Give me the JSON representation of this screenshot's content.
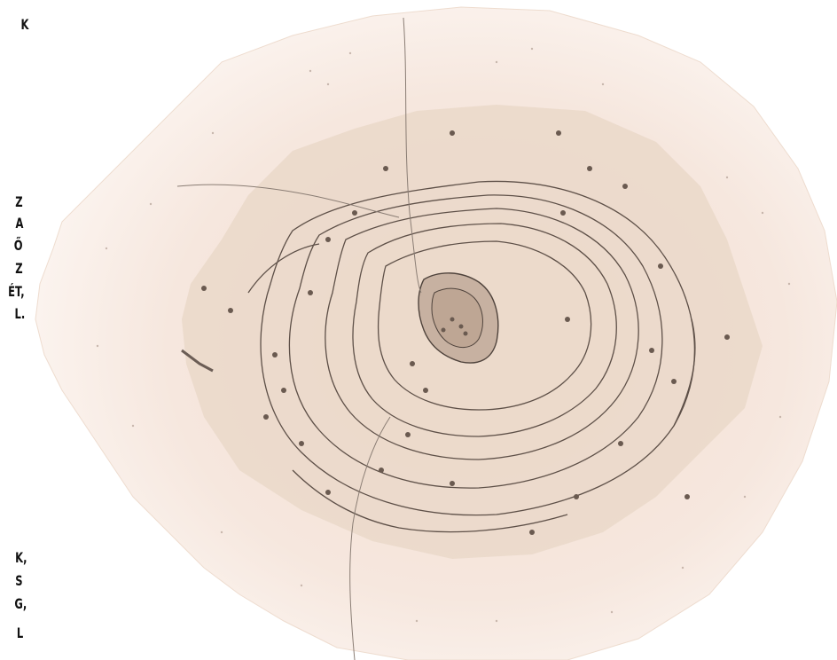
{
  "text_fragments": {
    "f1": "K",
    "f2": "Z",
    "f3": "A",
    "f4": "Ő",
    "f5": "Z",
    "f6": "ÉT,",
    "f7": "L.",
    "f8": "K,",
    "f9": "S",
    "f10": "G,",
    "f11": "L"
  },
  "colors": {
    "background": "#ffffff",
    "outer_zone": "#f6e6dc",
    "middle_zone": "#e8d6c6",
    "inner_zone": "#dac4b1",
    "core_zone": "#c9b3a2",
    "contour_line": "#5e5048",
    "text": "#111111"
  }
}
